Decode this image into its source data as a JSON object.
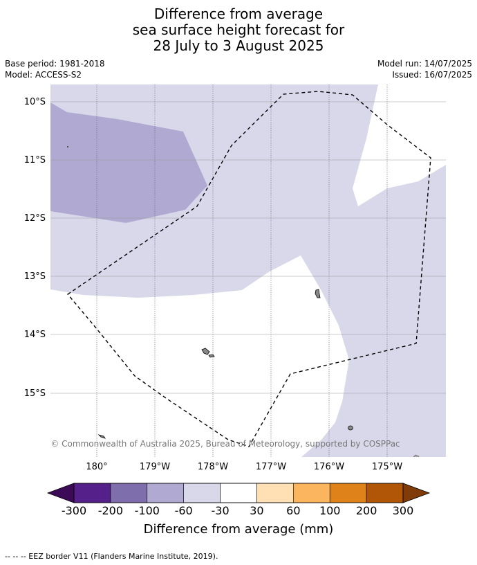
{
  "title": {
    "line1": "Difference from average",
    "line2": "sea surface height forecast for",
    "line3": "28 July to 3 August 2025"
  },
  "meta": {
    "base_period": "Base period: 1981-2018",
    "model": "Model: ACCESS-S2",
    "model_run": "Model run: 14/07/2025",
    "issued": "Issued: 16/07/2025"
  },
  "map": {
    "lat_labels": [
      "10°S",
      "11°S",
      "12°S",
      "13°S",
      "14°S",
      "15°S"
    ],
    "lon_labels": [
      "180°",
      "179°W",
      "178°W",
      "177°W",
      "176°W",
      "175°W"
    ],
    "copyright": "© Commonwealth of Australia 2025, Bureau of Meteorology, supported by COSPPac",
    "colors": {
      "minus100_to_minus60": "#b0a9d1",
      "minus60_to_minus30": "#d8d8ea",
      "minus30_to_30": "#ffffff",
      "land": "#888888",
      "eez_border": "#000000",
      "gridline": "#999999"
    }
  },
  "colorbar": {
    "ticks": [
      "-300",
      "-200",
      "-100",
      "-60",
      "-30",
      "30",
      "60",
      "100",
      "200",
      "300"
    ],
    "colors": [
      "#56208a",
      "#7e6eab",
      "#b0a9d1",
      "#d8d8ea",
      "#ffffff",
      "#fee0b4",
      "#fbb55f",
      "#e0821a",
      "#b15606"
    ],
    "under_color": "#3d0a57",
    "over_color": "#7f3b08",
    "label": "Difference from average (mm)"
  },
  "footer": {
    "legend": "--  --  -- EEZ border V11 (Flanders Marine Institute, 2019)."
  }
}
